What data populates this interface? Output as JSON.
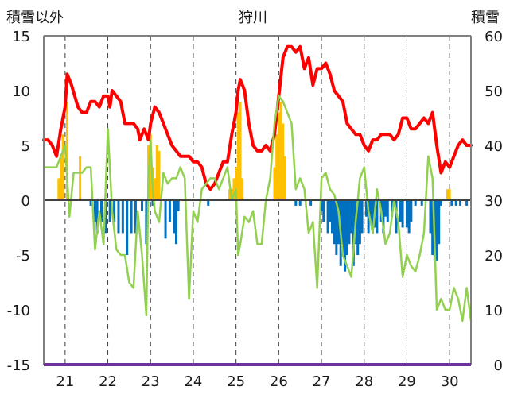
{
  "chart_data": {
    "type": "bar+line",
    "title": "狩川",
    "ylabel_left": "積雪以外",
    "ylabel_right": "積雪",
    "y_left": {
      "min": -15,
      "max": 15,
      "ticks": [
        15,
        10,
        5,
        0,
        -5,
        -10,
        -15
      ]
    },
    "y_right": {
      "min": 0,
      "max": 60,
      "ticks": [
        60,
        50,
        40,
        30,
        20,
        10,
        0
      ]
    },
    "x_categories": [
      "21",
      "22",
      "23",
      "24",
      "25",
      "26",
      "27",
      "28",
      "29",
      "30"
    ],
    "x_domain": [
      20.5,
      30.5
    ],
    "grid": "vertical dashed lines at each day, horizontal line at 0",
    "colors": {
      "snow_depth": "#ff0000",
      "temperature": "#92d050",
      "snowfall_bar": "#ffc000",
      "decrease_bar": "#0070c0",
      "baseline": "#7030a0",
      "axis": "#808080"
    },
    "series": [
      {
        "role": "snow_depth_right_axis",
        "color": "#ff0000",
        "x": [
          20.5,
          20.6,
          20.7,
          20.8,
          20.9,
          21.0,
          21.05,
          21.15,
          21.3,
          21.4,
          21.5,
          21.6,
          21.7,
          21.8,
          21.9,
          22.0,
          22.05,
          22.1,
          22.2,
          22.3,
          22.4,
          22.5,
          22.6,
          22.7,
          22.75,
          22.85,
          22.95,
          23.0,
          23.1,
          23.2,
          23.3,
          23.4,
          23.5,
          23.6,
          23.7,
          23.8,
          23.9,
          24.0,
          24.1,
          24.2,
          24.3,
          24.4,
          24.5,
          24.6,
          24.7,
          24.8,
          24.9,
          25.0,
          25.05,
          25.1,
          25.2,
          25.3,
          25.4,
          25.5,
          25.6,
          25.7,
          25.8,
          25.9,
          26.0,
          26.1,
          26.2,
          26.3,
          26.4,
          26.5,
          26.6,
          26.7,
          26.8,
          26.9,
          27.0,
          27.1,
          27.2,
          27.3,
          27.4,
          27.5,
          27.6,
          27.7,
          27.8,
          27.9,
          28.0,
          28.1,
          28.2,
          28.3,
          28.4,
          28.5,
          28.6,
          28.7,
          28.8,
          28.9,
          29.0,
          29.1,
          29.2,
          29.3,
          29.4,
          29.5,
          29.6,
          29.7,
          29.8,
          29.9,
          30.0,
          30.1,
          30.2,
          30.3,
          30.4,
          30.5
        ],
        "values": [
          41,
          41,
          40,
          38,
          43,
          47,
          53,
          51,
          47,
          46,
          46,
          48,
          48,
          47,
          49,
          49,
          47,
          50,
          49,
          48,
          44,
          44,
          44,
          43,
          41,
          43,
          41,
          44,
          47,
          46,
          44,
          42,
          40,
          39,
          38,
          38,
          38,
          37,
          37,
          36,
          33,
          32,
          33,
          35,
          37,
          37,
          42,
          46,
          50,
          52,
          50,
          44,
          40,
          39,
          39,
          40,
          39,
          42,
          49,
          56,
          58,
          58,
          57,
          58,
          54,
          56,
          51,
          54,
          54,
          55,
          53,
          50,
          49,
          48,
          44,
          43,
          42,
          42,
          40,
          39,
          41,
          41,
          42,
          42,
          42,
          41,
          42,
          45,
          45,
          43,
          43,
          44,
          45,
          44,
          46,
          40,
          35,
          37,
          36,
          38,
          40,
          41,
          40,
          40
        ]
      },
      {
        "role": "temperature_left_axis",
        "color": "#92d050",
        "x": [
          20.5,
          20.6,
          20.7,
          20.8,
          20.9,
          21.0,
          21.05,
          21.1,
          21.2,
          21.3,
          21.4,
          21.5,
          21.6,
          21.7,
          21.8,
          21.9,
          22.0,
          22.1,
          22.2,
          22.3,
          22.4,
          22.5,
          22.6,
          22.7,
          22.8,
          22.9,
          22.95,
          23.0,
          23.05,
          23.1,
          23.2,
          23.3,
          23.4,
          23.5,
          23.6,
          23.7,
          23.8,
          23.9,
          24.0,
          24.1,
          24.2,
          24.3,
          24.4,
          24.5,
          24.6,
          24.7,
          24.8,
          24.9,
          25.0,
          25.05,
          25.1,
          25.2,
          25.3,
          25.4,
          25.5,
          25.6,
          25.7,
          25.8,
          25.9,
          26.0,
          26.1,
          26.2,
          26.3,
          26.4,
          26.5,
          26.6,
          26.7,
          26.8,
          26.9,
          27.0,
          27.1,
          27.2,
          27.3,
          27.4,
          27.5,
          27.6,
          27.7,
          27.8,
          27.9,
          28.0,
          28.1,
          28.2,
          28.3,
          28.4,
          28.5,
          28.6,
          28.7,
          28.8,
          28.9,
          29.0,
          29.1,
          29.2,
          29.3,
          29.4,
          29.5,
          29.6,
          29.7,
          29.8,
          29.9,
          30.0,
          30.1,
          30.2,
          30.3,
          30.4,
          30.5
        ],
        "values": [
          3,
          3,
          3,
          3,
          4,
          5,
          2,
          -1.5,
          2.5,
          2.5,
          2.5,
          3,
          3,
          -4.5,
          -1,
          -4,
          6.5,
          -1,
          -4.5,
          -5,
          -5,
          -7.5,
          -8,
          -1,
          -5,
          -10.5,
          2,
          5.5,
          1,
          -1,
          -2,
          2.5,
          1.5,
          2,
          2,
          3,
          2,
          -9,
          -1,
          -2,
          1,
          1.5,
          2,
          2,
          1,
          2,
          3,
          0,
          1,
          -5,
          -4,
          -1.5,
          -2,
          -1,
          -4,
          -4,
          0,
          2,
          7,
          9.5,
          9,
          8,
          7,
          1,
          2,
          1,
          -3,
          -2,
          -8,
          2,
          2.5,
          1,
          0.5,
          -1,
          -5,
          -6,
          -7,
          -2,
          2,
          3,
          -1,
          -3,
          1,
          -1,
          -4,
          -3,
          0,
          -2,
          -7,
          -5,
          -6,
          -6.5,
          -5,
          -3,
          4,
          2,
          -10,
          -9,
          -10,
          -10,
          -8,
          -9,
          -11,
          -8,
          -11
        ]
      },
      {
        "role": "snowfall_bars_left_axis",
        "color": "#ffc000",
        "x": [
          20.85,
          20.9,
          20.95,
          21.05,
          21.35,
          22.95,
          23.0,
          23.05,
          23.1,
          23.15,
          23.2,
          24.85,
          24.9,
          24.95,
          25.0,
          25.05,
          25.1,
          25.15,
          25.9,
          25.95,
          26.0,
          26.05,
          26.1,
          26.15,
          29.95,
          30.0
        ],
        "values": [
          2,
          4,
          6,
          9,
          4,
          5,
          6,
          3,
          2,
          5,
          4.5,
          1,
          1,
          2,
          3,
          8,
          9,
          2,
          3,
          6,
          8,
          9,
          7,
          4,
          1,
          1
        ]
      },
      {
        "role": "decrease_bars_left_axis",
        "color": "#0070c0",
        "x": [
          21.6,
          21.7,
          21.75,
          21.85,
          21.95,
          22.05,
          22.15,
          22.25,
          22.35,
          22.45,
          22.55,
          22.65,
          22.8,
          22.9,
          23.05,
          23.35,
          23.45,
          23.55,
          23.6,
          23.65,
          24.35,
          26.4,
          26.5,
          26.75,
          27.0,
          27.05,
          27.15,
          27.2,
          27.25,
          27.3,
          27.35,
          27.4,
          27.45,
          27.5,
          27.55,
          27.6,
          27.65,
          27.7,
          27.75,
          27.8,
          27.85,
          27.9,
          27.95,
          28.05,
          28.1,
          28.15,
          28.2,
          28.25,
          28.3,
          28.4,
          28.45,
          28.5,
          28.55,
          28.65,
          28.75,
          28.85,
          28.9,
          29.0,
          29.05,
          29.1,
          29.2,
          29.35,
          29.55,
          29.6,
          29.65,
          29.7,
          29.75,
          29.8,
          30.05,
          30.15,
          30.25,
          30.4
        ],
        "values": [
          -0.5,
          -2,
          -3,
          -2,
          -3,
          -2,
          -2,
          -3,
          -3,
          -5,
          -3,
          -3,
          -1,
          -4,
          -0.5,
          -3.5,
          -2,
          -3,
          -4,
          -1,
          -0.5,
          -0.5,
          -0.5,
          -0.5,
          -1,
          -2,
          -3,
          -2,
          -3,
          -4,
          -5,
          -4,
          -6,
          -5,
          -6.5,
          -5,
          -4,
          -3,
          -6,
          -4,
          -5,
          -4,
          -3,
          -1.5,
          -3,
          -2,
          -3,
          -2.5,
          -3,
          -2,
          -3,
          -1.5,
          -2,
          -1.5,
          -3,
          -2,
          -2.5,
          -2.5,
          -3,
          -2,
          -0.5,
          -0.5,
          -3,
          -5,
          -5.5,
          -5.5,
          -4,
          -0.5,
          -0.5,
          -0.5,
          -0.5,
          -0.5
        ]
      }
    ]
  }
}
